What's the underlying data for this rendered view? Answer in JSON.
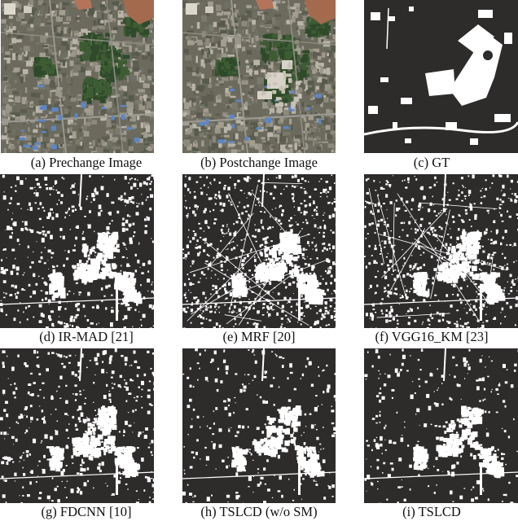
{
  "figure": {
    "panels": [
      {
        "id": "a",
        "caption": "(a) Prechange Image",
        "kind": "rgb",
        "seed": 11
      },
      {
        "id": "b",
        "caption": "(b) Postchange Image",
        "kind": "rgb",
        "seed": 12
      },
      {
        "id": "c",
        "caption": "(c) GT",
        "kind": "gt",
        "seed": 13
      },
      {
        "id": "d",
        "caption": "(d) IR-MAD [21]",
        "kind": "mask",
        "seed": 21,
        "density": 0.22
      },
      {
        "id": "e",
        "caption": "(e) MRF [20]",
        "kind": "mask",
        "seed": 22,
        "density": 0.34
      },
      {
        "id": "f",
        "caption": "(f) VGG16_KM [23]",
        "kind": "mask",
        "seed": 23,
        "density": 0.28
      },
      {
        "id": "g",
        "caption": "(g) FDCNN [10]",
        "kind": "mask",
        "seed": 31,
        "density": 0.18
      },
      {
        "id": "h",
        "caption": "(h) TSLCD (w/o SM)",
        "kind": "mask",
        "seed": 32,
        "density": 0.12
      },
      {
        "id": "i",
        "caption": "(i) TSLCD",
        "kind": "mask",
        "seed": 33,
        "density": 0.11
      }
    ],
    "colors": {
      "mask_background": "#2e2b2b",
      "mask_foreground": "#ffffff",
      "rgb_base": "#6b6a5c",
      "rgb_vegetation": "#2f4a2a",
      "rgb_roof_blue": "#5d86c6",
      "rgb_soil": "#a46a4d",
      "rgb_bright": "#d8d3c8"
    }
  }
}
